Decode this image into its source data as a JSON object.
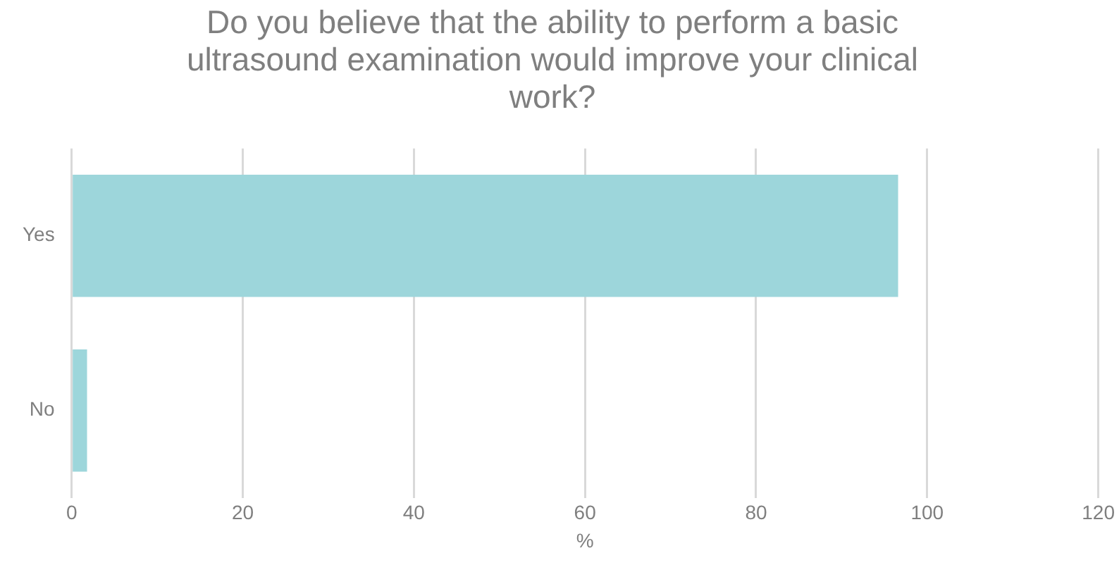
{
  "chart_data": {
    "type": "bar",
    "orientation": "horizontal",
    "title": "Do you believe that the ability to perform a basic ultrasound examination would improve your clinical work?",
    "xlabel": "%",
    "categories": [
      "Yes",
      "No"
    ],
    "values": [
      96.6,
      1.8
    ],
    "color": "#9dd6db",
    "xlim": [
      0,
      120
    ],
    "xticks": [
      0,
      20,
      40,
      60,
      80,
      100,
      120
    ],
    "grid": "x"
  }
}
